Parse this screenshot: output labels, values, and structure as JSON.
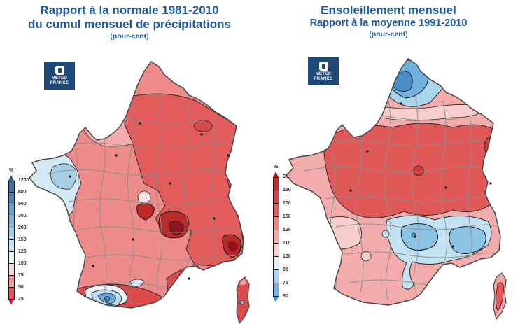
{
  "colors": {
    "title_blue": "#1A5AA8",
    "logo_navy": "#1E4876",
    "map_outline": "#4A4A4A",
    "department_border": "#8B8B8B",
    "contour": "#2A2A2A"
  },
  "left_panel": {
    "title_line1": "Rapport à la normale 1981-2010",
    "title_line2": "du cumul mensuel de précipitations",
    "title_line3": "(pour-cent)",
    "logo": {
      "line1": "METEO",
      "line2": "FRANCE"
    },
    "legend": {
      "unit": "%",
      "labels": [
        "1200",
        "800",
        "500",
        "300",
        "200",
        "150",
        "125",
        "100",
        "75",
        "50",
        "25"
      ],
      "segments": [
        "#3A6FAE",
        "#4C85C0",
        "#66A0CF",
        "#7FB6DC",
        "#A3CDE8",
        "#C6E1F2",
        "#E7F2F8",
        "#F6D8D8",
        "#EF9B9B",
        "#E05555"
      ],
      "arrow_top": "#2B5D9B",
      "arrow_bottom": "#C43232"
    }
  },
  "right_panel": {
    "title_line1": "Ensoleillement mensuel",
    "title_line2": "Rapport à la moyenne 1991-2010",
    "title_line3": "(pour-cent)",
    "logo": {
      "line1": "METEO",
      "line2": "FRANCE"
    },
    "legend": {
      "unit": "%",
      "labels": [
        "300",
        "250",
        "200",
        "150",
        "125",
        "110",
        "100",
        "90",
        "75",
        "50"
      ],
      "segments": [
        "#C22D2D",
        "#D64545",
        "#E25C5C",
        "#EC8888",
        "#F2AAAA",
        "#F8CFCF",
        "#DCEEF7",
        "#A9D4EC",
        "#74B3DC"
      ],
      "arrow_top": "#A51F1F",
      "arrow_bottom": "#4A90C9"
    }
  }
}
